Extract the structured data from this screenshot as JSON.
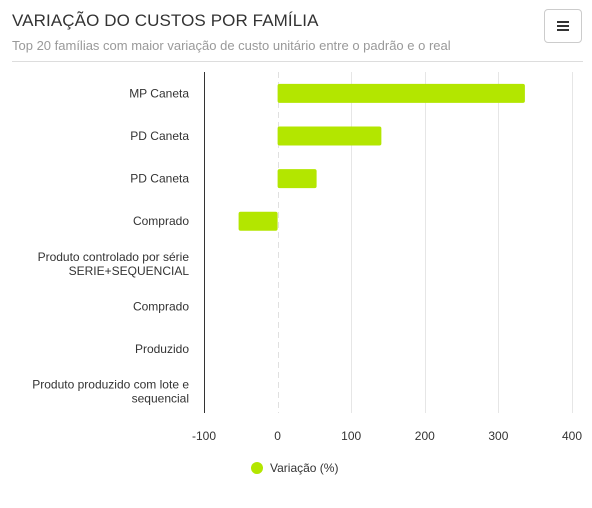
{
  "header": {
    "title": "VARIAÇÃO DO CUSTOS POR FAMÍLIA",
    "subtitle": "Top 20 famílias com maior variação de custo unitário entre o padrão e o real"
  },
  "menu": {
    "icon": "hamburger-menu-icon"
  },
  "colors": {
    "series": "#b3e600",
    "grid": "#e6e6e6",
    "zero_line": "#e0e0e0",
    "axis": "#333333"
  },
  "chart_data": {
    "type": "bar",
    "orientation": "horizontal",
    "title": "VARIAÇÃO DO CUSTOS POR FAMÍLIA",
    "subtitle": "Top 20 famílias com maior variação de custo unitário entre o padrão e o real",
    "categories": [
      [
        "MP Caneta"
      ],
      [
        "PD Caneta"
      ],
      [
        "PD Caneta"
      ],
      [
        "Comprado"
      ],
      [
        "Produto controlado por série",
        "SERIE+SEQUENCIAL"
      ],
      [
        "Comprado"
      ],
      [
        "Produzido"
      ],
      [
        "Produto produzido com lote e",
        "sequencial"
      ]
    ],
    "series": [
      {
        "name": "Variação (%)",
        "values": [
          336,
          141,
          53,
          -53,
          0,
          0,
          0,
          0
        ]
      }
    ],
    "xlim": [
      -100,
      400
    ],
    "xticks": [
      -100,
      0,
      100,
      200,
      300,
      400
    ],
    "grid": true,
    "legend": "bottom-center"
  }
}
